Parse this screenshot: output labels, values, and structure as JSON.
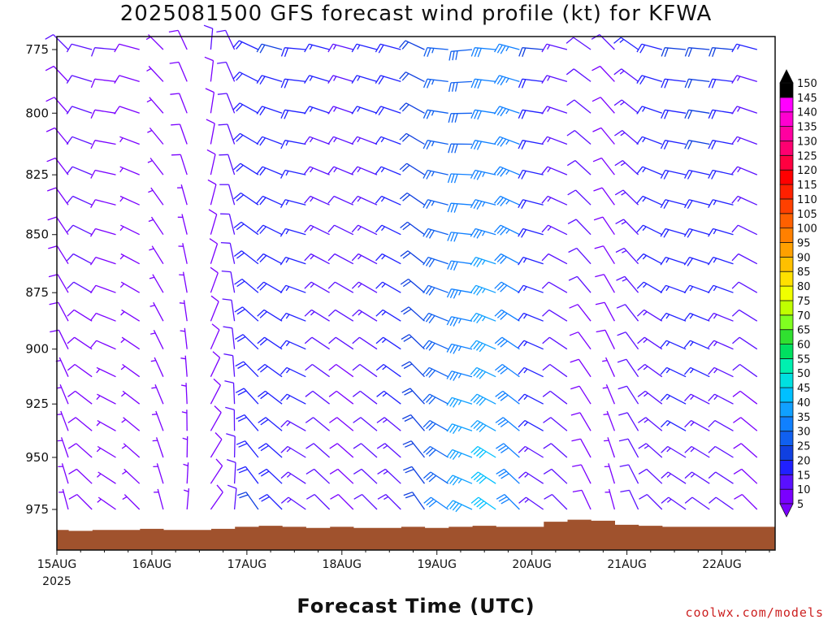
{
  "chart_data": {
    "type": "wind_barb_profile",
    "title": "2025081500 GFS forecast wind profile (kt) for KFWA",
    "xlabel": "Forecast Time (UTC)",
    "credit": "coolwx.com/models",
    "x_ticks": [
      "15AUG",
      "16AUG",
      "17AUG",
      "18AUG",
      "19AUG",
      "20AUG",
      "21AUG",
      "22AUG"
    ],
    "x_year": "2025",
    "x_range_days": [
      0,
      7.56
    ],
    "y_ticks": [
      775,
      800,
      825,
      850,
      875,
      900,
      925,
      950,
      975
    ],
    "y_range_hpa": [
      770,
      1000
    ],
    "y_scale": "log-pressure",
    "colorbar_levels": [
      5,
      10,
      15,
      20,
      25,
      30,
      35,
      40,
      45,
      50,
      55,
      60,
      65,
      70,
      75,
      80,
      85,
      90,
      95,
      100,
      105,
      110,
      115,
      120,
      125,
      130,
      135,
      140,
      145,
      150
    ],
    "colorbar_colors": [
      "#7a00ff",
      "#5a10ff",
      "#2020ff",
      "#1040e0",
      "#1060f0",
      "#1080ff",
      "#10a0ff",
      "#00c0ff",
      "#00e0e0",
      "#00f0b0",
      "#00e060",
      "#30e030",
      "#80ff20",
      "#c0ff00",
      "#f0ff00",
      "#ffe000",
      "#ffc000",
      "#ffa000",
      "#ff8000",
      "#ff6000",
      "#ff4000",
      "#ff2000",
      "#ff0000",
      "#ff0040",
      "#ff0070",
      "#ff00a0",
      "#ff00d0",
      "#ff00ff",
      "#000000"
    ],
    "surface_color": "#a0522d",
    "levels_hpa": [
      775,
      787.5,
      800,
      812.5,
      825,
      837.5,
      850,
      862.5,
      875,
      887.5,
      900,
      912.5,
      925,
      937.5,
      950,
      962.5,
      975
    ],
    "time_step_hours": 6,
    "times_days": [
      0,
      0.25,
      0.5,
      0.75,
      1,
      1.25,
      1.5,
      1.75,
      2,
      2.25,
      2.5,
      2.75,
      3,
      3.25,
      3.5,
      3.75,
      4,
      4.25,
      4.5,
      4.75,
      5,
      5.25,
      5.5,
      5.75,
      6,
      6.25,
      6.5,
      6.75,
      7,
      7.25,
      7.5
    ],
    "wind_dir_by_time": [
      330,
      300,
      290,
      300,
      330,
      350,
      20,
      350,
      310,
      300,
      290,
      300,
      300,
      300,
      300,
      310,
      290,
      280,
      290,
      300,
      290,
      300,
      320,
      330,
      320,
      300,
      290,
      290,
      290,
      300,
      300
    ],
    "wind_speed_upper_kt": [
      10,
      12,
      10,
      8,
      6,
      8,
      10,
      12,
      18,
      20,
      18,
      16,
      14,
      16,
      18,
      22,
      26,
      28,
      30,
      34,
      20,
      14,
      12,
      10,
      15,
      18,
      20,
      22,
      20,
      15,
      12
    ],
    "wind_speed_lower_kt": [
      6,
      8,
      6,
      5,
      5,
      6,
      8,
      10,
      20,
      18,
      14,
      10,
      8,
      10,
      14,
      20,
      30,
      38,
      42,
      30,
      14,
      10,
      8,
      6,
      10,
      12,
      14,
      12,
      10,
      8,
      6
    ],
    "surface_pressure_hpa": [
      985,
      985.5,
      985,
      985,
      984.5,
      985,
      985,
      984.5,
      983.5,
      983,
      983.5,
      984,
      983.5,
      984,
      984,
      983.5,
      984,
      983.5,
      983,
      983.5,
      983.5,
      981,
      980,
      980.5,
      982.5,
      983,
      983.5,
      983.5,
      983.5,
      983.5,
      983.5
    ]
  }
}
